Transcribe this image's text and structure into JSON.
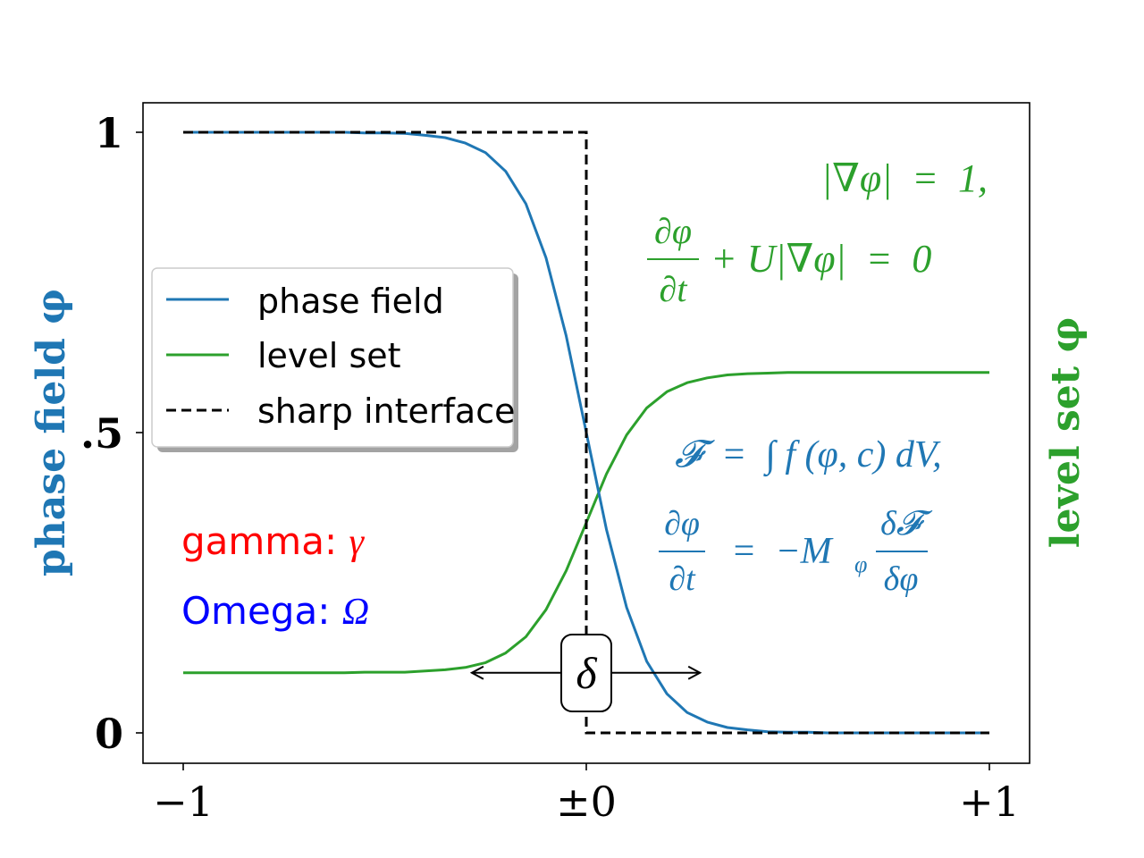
{
  "chart_data": {
    "type": "line",
    "xlim": [
      -1.1,
      1.1
    ],
    "ylim": [
      -0.05,
      1.05
    ],
    "grid": false,
    "legend_placement": "center-left",
    "xlabel": "",
    "ylabel": "phase field φ",
    "ylabel_right": "level set φ",
    "x_ticks": [
      {
        "value": -1,
        "label": "−1"
      },
      {
        "value": 0,
        "label": "±0"
      },
      {
        "value": 1,
        "label": "+1"
      }
    ],
    "y_ticks": [
      {
        "value": 1,
        "label": "1"
      },
      {
        "value": 0.5,
        "label": ".5"
      },
      {
        "value": 0,
        "label": "0"
      }
    ],
    "x": [
      -1,
      -0.95,
      -0.9,
      -0.85,
      -0.8,
      -0.75,
      -0.7,
      -0.65,
      -0.6,
      -0.55,
      -0.5,
      -0.45,
      -0.4,
      -0.35,
      -0.3,
      -0.25,
      -0.2,
      -0.15,
      -0.1,
      -0.05,
      0,
      0.05,
      0.1,
      0.15,
      0.2,
      0.25,
      0.3,
      0.35,
      0.4,
      0.45,
      0.5,
      0.55,
      0.6,
      0.65,
      0.7,
      0.75,
      0.8,
      0.85,
      0.9,
      0.95,
      1
    ],
    "series": [
      {
        "name": "phase field",
        "color": "#1f77b4",
        "style": "solid",
        "values": [
          1,
          1,
          1,
          1,
          1,
          1,
          1,
          1,
          1,
          0.999,
          0.999,
          0.998,
          0.995,
          0.991,
          0.982,
          0.966,
          0.935,
          0.881,
          0.791,
          0.661,
          0.5,
          0.339,
          0.209,
          0.119,
          0.065,
          0.034,
          0.018,
          0.009,
          0.005,
          0.002,
          0.001,
          0.001,
          0,
          0,
          0,
          0,
          0,
          0,
          0,
          0,
          0
        ]
      },
      {
        "name": "level set",
        "color": "#2ca02c",
        "style": "solid",
        "values": [
          0.1,
          0.1,
          0.1,
          0.1,
          0.1,
          0.1,
          0.1,
          0.1,
          0.1,
          0.101,
          0.101,
          0.101,
          0.103,
          0.105,
          0.109,
          0.117,
          0.133,
          0.16,
          0.205,
          0.27,
          0.35,
          0.431,
          0.496,
          0.541,
          0.568,
          0.583,
          0.591,
          0.596,
          0.598,
          0.599,
          0.6,
          0.6,
          0.6,
          0.6,
          0.6,
          0.6,
          0.6,
          0.6,
          0.6,
          0.6,
          0.6
        ]
      },
      {
        "name": "sharp interface",
        "color": "#000000",
        "style": "dashed",
        "points": [
          [
            -1,
            1
          ],
          [
            0,
            1
          ],
          [
            0,
            0
          ],
          [
            1,
            0
          ]
        ]
      }
    ],
    "annotations": {
      "gamma_text": "gamma: ",
      "gamma_symbol": "γ",
      "gamma_color": "#ff0000",
      "omega_text": "Omega: ",
      "omega_symbol": "Ω",
      "omega_color": "#0000ff",
      "delta_label": "δ",
      "delta_arrow": {
        "from": -0.284,
        "to": 0.282,
        "y": 0.1
      },
      "level_set_eq1": "|∇φ|  =  1,",
      "level_set_eq2_frac_num": "∂φ",
      "level_set_eq2_frac_den": "∂t",
      "level_set_eq2_rest": "+ U|∇φ|  =  0",
      "phase_eq1": "𝓕  =  ∫ f (φ, c) dV,",
      "phase_eq2_frac_num": "∂φ",
      "phase_eq2_frac_den": "∂t",
      "phase_eq2_mid": "=  −M",
      "phase_eq2_sub": "φ",
      "phase_eq2_frac2_num": "δ𝓕",
      "phase_eq2_frac2_den": "δφ"
    }
  }
}
